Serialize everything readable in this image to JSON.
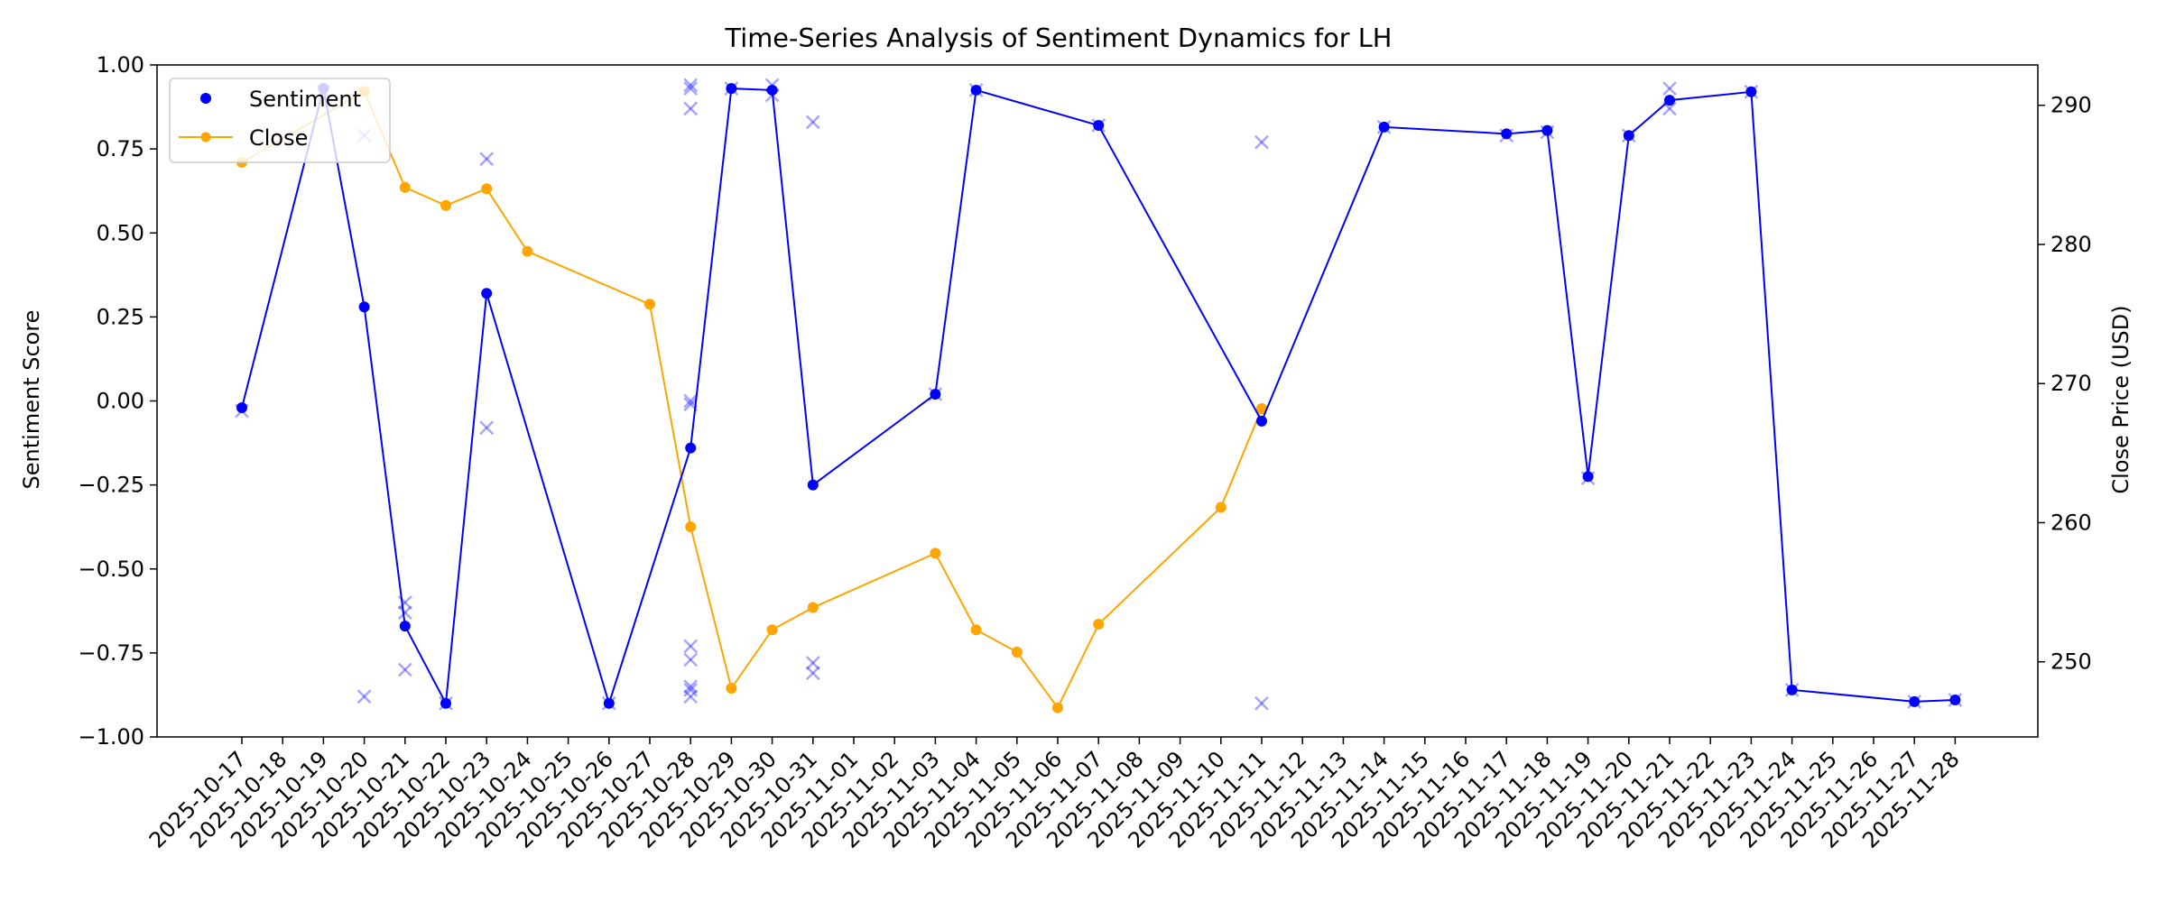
{
  "chart_data": {
    "type": "line",
    "title": "Time-Series Analysis of Sentiment Dynamics for LH",
    "ylabel_left": "Sentiment Score",
    "ylabel_right": "Close Price (USD)",
    "xlabel": "",
    "x_dates": [
      "2025-10-17",
      "2025-10-18",
      "2025-10-19",
      "2025-10-20",
      "2025-10-21",
      "2025-10-22",
      "2025-10-23",
      "2025-10-24",
      "2025-10-25",
      "2025-10-26",
      "2025-10-27",
      "2025-10-28",
      "2025-10-29",
      "2025-10-30",
      "2025-10-31",
      "2025-11-01",
      "2025-11-02",
      "2025-11-03",
      "2025-11-04",
      "2025-11-05",
      "2025-11-06",
      "2025-11-07",
      "2025-11-08",
      "2025-11-09",
      "2025-11-10",
      "2025-11-11",
      "2025-11-12",
      "2025-11-13",
      "2025-11-14",
      "2025-11-15",
      "2025-11-16",
      "2025-11-17",
      "2025-11-18",
      "2025-11-19",
      "2025-11-20",
      "2025-11-21",
      "2025-11-22",
      "2025-11-23",
      "2025-11-24",
      "2025-11-25",
      "2025-11-26",
      "2025-11-27",
      "2025-11-28"
    ],
    "ylim_left": [
      -1.0,
      1.0
    ],
    "yticks_left": [
      "1.00",
      "0.75",
      "0.50",
      "0.25",
      "0.00",
      "−0.25",
      "−0.50",
      "−0.75",
      "−1.00"
    ],
    "yticks_left_values": [
      1.0,
      0.75,
      0.5,
      0.25,
      0.0,
      -0.25,
      -0.5,
      -0.75,
      -1.0
    ],
    "ylim_right": [
      244.6,
      292.9
    ],
    "yticks_right": [
      "290",
      "280",
      "270",
      "260",
      "250"
    ],
    "yticks_right_values": [
      290,
      280,
      270,
      260,
      250
    ],
    "legend_position": "upper-left",
    "series": [
      {
        "name": "Sentiment",
        "axis": "left",
        "color": "#0000ff",
        "points": [
          {
            "x": "2025-10-17",
            "y": -0.02
          },
          {
            "x": "2025-10-19",
            "y": 0.93
          },
          {
            "x": "2025-10-20",
            "y": 0.28
          },
          {
            "x": "2025-10-21",
            "y": -0.67
          },
          {
            "x": "2025-10-22",
            "y": -0.9
          },
          {
            "x": "2025-10-23",
            "y": 0.32
          },
          {
            "x": "2025-10-26",
            "y": -0.9
          },
          {
            "x": "2025-10-28",
            "y": -0.14
          },
          {
            "x": "2025-10-29",
            "y": 0.93
          },
          {
            "x": "2025-10-30",
            "y": 0.925
          },
          {
            "x": "2025-10-31",
            "y": -0.25
          },
          {
            "x": "2025-11-03",
            "y": 0.02
          },
          {
            "x": "2025-11-04",
            "y": 0.925
          },
          {
            "x": "2025-11-07",
            "y": 0.82
          },
          {
            "x": "2025-11-11",
            "y": -0.06
          },
          {
            "x": "2025-11-14",
            "y": 0.815
          },
          {
            "x": "2025-11-17",
            "y": 0.795
          },
          {
            "x": "2025-11-18",
            "y": 0.805
          },
          {
            "x": "2025-11-19",
            "y": -0.225
          },
          {
            "x": "2025-11-20",
            "y": 0.79
          },
          {
            "x": "2025-11-21",
            "y": 0.895
          },
          {
            "x": "2025-11-23",
            "y": 0.92
          },
          {
            "x": "2025-11-24",
            "y": -0.86
          },
          {
            "x": "2025-11-27",
            "y": -0.895
          },
          {
            "x": "2025-11-28",
            "y": -0.89
          }
        ]
      },
      {
        "name": "Close",
        "axis": "right",
        "color": "#ffa500",
        "points": [
          {
            "x": "2025-10-17",
            "y": 285.9
          },
          {
            "x": "2025-10-20",
            "y": 291.0
          },
          {
            "x": "2025-10-21",
            "y": 284.1
          },
          {
            "x": "2025-10-22",
            "y": 282.8
          },
          {
            "x": "2025-10-23",
            "y": 284.0
          },
          {
            "x": "2025-10-24",
            "y": 279.5
          },
          {
            "x": "2025-10-27",
            "y": 275.7
          },
          {
            "x": "2025-10-28",
            "y": 259.7
          },
          {
            "x": "2025-10-29",
            "y": 248.1
          },
          {
            "x": "2025-10-30",
            "y": 252.3
          },
          {
            "x": "2025-10-31",
            "y": 253.9
          },
          {
            "x": "2025-11-03",
            "y": 257.8
          },
          {
            "x": "2025-11-04",
            "y": 252.3
          },
          {
            "x": "2025-11-05",
            "y": 250.7
          },
          {
            "x": "2025-11-06",
            "y": 246.7
          },
          {
            "x": "2025-11-07",
            "y": 252.7
          },
          {
            "x": "2025-11-10",
            "y": 261.1
          },
          {
            "x": "2025-11-11",
            "y": 268.2
          }
        ]
      }
    ],
    "scatter_raw": {
      "marker": "x",
      "color": "#0000ff",
      "points": [
        {
          "x": "2025-10-17",
          "y": -0.03
        },
        {
          "x": "2025-10-19",
          "y": 0.92
        },
        {
          "x": "2025-10-20",
          "y": 0.79
        },
        {
          "x": "2025-10-20",
          "y": -0.88
        },
        {
          "x": "2025-10-21",
          "y": -0.6
        },
        {
          "x": "2025-10-21",
          "y": -0.63
        },
        {
          "x": "2025-10-21",
          "y": -0.8
        },
        {
          "x": "2025-10-22",
          "y": -0.9
        },
        {
          "x": "2025-10-23",
          "y": 0.72
        },
        {
          "x": "2025-10-23",
          "y": -0.08
        },
        {
          "x": "2025-10-26",
          "y": -0.9
        },
        {
          "x": "2025-10-28",
          "y": 0.94
        },
        {
          "x": "2025-10-28",
          "y": 0.93
        },
        {
          "x": "2025-10-28",
          "y": 0.87
        },
        {
          "x": "2025-10-28",
          "y": 0.0
        },
        {
          "x": "2025-10-28",
          "y": -0.01
        },
        {
          "x": "2025-10-28",
          "y": -0.73
        },
        {
          "x": "2025-10-28",
          "y": -0.77
        },
        {
          "x": "2025-10-28",
          "y": -0.85
        },
        {
          "x": "2025-10-28",
          "y": -0.86
        },
        {
          "x": "2025-10-28",
          "y": -0.88
        },
        {
          "x": "2025-10-29",
          "y": 0.93
        },
        {
          "x": "2025-10-30",
          "y": 0.94
        },
        {
          "x": "2025-10-30",
          "y": 0.91
        },
        {
          "x": "2025-10-31",
          "y": 0.83
        },
        {
          "x": "2025-10-31",
          "y": -0.78
        },
        {
          "x": "2025-10-31",
          "y": -0.81
        },
        {
          "x": "2025-11-03",
          "y": 0.02
        },
        {
          "x": "2025-11-04",
          "y": 0.925
        },
        {
          "x": "2025-11-07",
          "y": 0.82
        },
        {
          "x": "2025-11-11",
          "y": 0.77
        },
        {
          "x": "2025-11-11",
          "y": -0.9
        },
        {
          "x": "2025-11-14",
          "y": 0.815
        },
        {
          "x": "2025-11-17",
          "y": 0.79
        },
        {
          "x": "2025-11-18",
          "y": 0.8
        },
        {
          "x": "2025-11-19",
          "y": -0.23
        },
        {
          "x": "2025-11-20",
          "y": 0.79
        },
        {
          "x": "2025-11-21",
          "y": 0.93
        },
        {
          "x": "2025-11-21",
          "y": 0.87
        },
        {
          "x": "2025-11-23",
          "y": 0.92
        },
        {
          "x": "2025-11-24",
          "y": -0.86
        },
        {
          "x": "2025-11-27",
          "y": -0.895
        },
        {
          "x": "2025-11-28",
          "y": -0.89
        }
      ]
    }
  }
}
